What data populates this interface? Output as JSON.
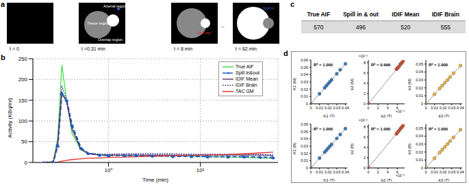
{
  "panel_labels": [
    "a",
    "b",
    "c",
    "d"
  ],
  "panel_a": {
    "frames": [
      {
        "time": "t = 0",
        "labels": []
      },
      {
        "time": "t =0.31 min",
        "labels": [
          "Arterial region",
          "Tissue region",
          "Overlap region"
        ]
      },
      {
        "time": "t = 8 min",
        "labels": [
          "Spill out"
        ]
      },
      {
        "time": "t = 62 min",
        "labels": [
          "Spill in"
        ]
      }
    ],
    "ellipsis": ".."
  },
  "table": {
    "header": [
      "True AIF",
      "Spill in & out",
      "IDIF Mean",
      "IDIF Brain"
    ],
    "rows": [
      [
        570,
        496,
        520,
        555
      ]
    ]
  },
  "chart_data": [
    {
      "type": "line",
      "log": "x",
      "x_label": "Time (min)",
      "y_label": "Activity (KBq/ml)",
      "xlim": [
        0.15,
        70
      ],
      "xticks": [
        {
          "value": 1,
          "label": "10⁰"
        },
        {
          "value": 10,
          "label": "10¹"
        }
      ],
      "ylim": [
        0,
        250
      ],
      "yticks": [
        0,
        50,
        100,
        150,
        200,
        250
      ],
      "grid": true,
      "legend": "top right",
      "x": [
        0.2,
        0.25,
        0.28,
        0.31,
        0.35,
        0.4,
        0.5,
        0.6,
        0.8,
        1,
        1.5,
        2,
        3,
        5,
        8,
        12,
        20,
        30,
        45,
        62
      ],
      "series": [
        {
          "name": "True AIF",
          "color": "#4ddb4d",
          "line_style": "solid",
          "values": [
            0,
            2,
            60,
            235,
            150,
            70,
            30,
            22,
            19,
            18,
            17,
            17,
            17,
            16,
            15,
            14,
            13,
            12,
            11,
            10
          ]
        },
        {
          "name": "Spill in&out",
          "color": "#1f5fbf",
          "line_style": "dashed",
          "marker": "circle",
          "values": [
            0,
            1,
            40,
            165,
            150,
            90,
            35,
            22,
            18,
            17,
            17,
            17,
            16,
            15,
            15,
            14,
            14,
            14,
            13,
            12
          ]
        },
        {
          "name": "IDIF Mean",
          "color": "#6a3d6a",
          "line_style": "solid",
          "values": [
            0,
            1,
            45,
            170,
            145,
            80,
            32,
            21,
            18,
            18,
            18,
            18,
            18,
            18,
            18,
            18,
            18,
            18,
            18,
            17
          ]
        },
        {
          "name": "IDIF Brain",
          "color": "#1a1a8c",
          "line_style": "dotted",
          "values": [
            0,
            1,
            50,
            185,
            150,
            85,
            33,
            22,
            20,
            20,
            21,
            21,
            21,
            21,
            20,
            20,
            20,
            20,
            19,
            18
          ]
        },
        {
          "name": "TAC GM",
          "color": "#e03030",
          "line_style": "solid",
          "values": [
            0,
            0,
            1,
            3,
            5,
            7,
            9,
            10,
            11,
            12,
            13,
            14,
            15,
            16,
            17,
            18,
            19,
            21,
            23,
            25
          ]
        }
      ]
    },
    {
      "type": "scatter",
      "x_label": "K1 (T)",
      "y_label": "K1 (M)",
      "annotation": "R² = 1.000",
      "color": "#3a7bbf",
      "xlim": [
        0,
        0.042
      ],
      "xticks": [
        0,
        0.01,
        0.02,
        0.03,
        0.04
      ],
      "ylim": [
        0,
        0.06
      ],
      "yticks": [
        0,
        0.01,
        0.02,
        0.03,
        0.04,
        0.05,
        0.06
      ],
      "x": [
        0,
        0.01,
        0.016,
        0.018,
        0.02,
        0.022,
        0.024,
        0.03,
        0.034,
        0.04
      ],
      "values": [
        0,
        0.0137,
        0.0219,
        0.0247,
        0.0274,
        0.0301,
        0.0329,
        0.0411,
        0.0466,
        0.0548
      ],
      "fit_line": {
        "x": [
          0,
          0.04
        ],
        "y": [
          0,
          0.0548
        ]
      }
    },
    {
      "type": "scatter",
      "x_label": "k2 (T)",
      "y_label": "k2 (M)",
      "annotation": "R² = 0.999",
      "color": "#e0553a",
      "x_exponent": "×10⁻³",
      "y_exponent": "×10⁻³",
      "xlim": [
        0,
        0.0075
      ],
      "xticks": [
        {
          "value": 0,
          "label": "0"
        },
        {
          "value": 0.002,
          "label": "2"
        },
        {
          "value": 0.004,
          "label": "4"
        },
        {
          "value": 0.006,
          "label": "6"
        }
      ],
      "ylim": [
        0,
        0.0085
      ],
      "yticks": [
        {
          "value": 0,
          "label": "0"
        },
        {
          "value": 0.002,
          "label": "2"
        },
        {
          "value": 0.004,
          "label": "4"
        },
        {
          "value": 0.006,
          "label": "6"
        },
        {
          "value": 0.008,
          "label": "8"
        }
      ],
      "x": [
        0,
        0.0058,
        0.006,
        0.0062,
        0.0064,
        0.0066,
        0.0068,
        0.007,
        0.0072
      ],
      "values": [
        0,
        0.0067,
        0.0069,
        0.0071,
        0.0073,
        0.0077,
        0.0078,
        0.0081,
        0.0083
      ],
      "fit_line": {
        "x": [
          0,
          0.0072
        ],
        "y": [
          0,
          0.0083
        ]
      }
    },
    {
      "type": "scatter",
      "x_label": "k3 (T)",
      "y_label": "k3 (M)",
      "annotation": "R² = 1.000",
      "color": "#f2b632",
      "xlim": [
        0,
        0.042
      ],
      "xticks": [
        0,
        0.01,
        0.02,
        0.03,
        0.04
      ],
      "ylim": [
        0,
        0.055
      ],
      "yticks": [
        0,
        0.01,
        0.02,
        0.03,
        0.04,
        0.05
      ],
      "x": [
        0,
        0.01,
        0.016,
        0.019,
        0.022,
        0.025,
        0.028,
        0.032,
        0.04
      ],
      "values": [
        0,
        0.012,
        0.0192,
        0.0228,
        0.0264,
        0.03,
        0.0336,
        0.0384,
        0.048
      ],
      "fit_line": {
        "x": [
          0,
          0.04
        ],
        "y": [
          0,
          0.048
        ]
      }
    },
    {
      "type": "scatter",
      "x_label": "K1 (T)",
      "y_label": "K1 (B)",
      "annotation": "R² = 1.000",
      "color": "#3a7bbf",
      "xlim": [
        0,
        0.042
      ],
      "xticks": [
        0,
        0.01,
        0.02,
        0.03,
        0.04
      ],
      "ylim": [
        0,
        0.06
      ],
      "yticks": [
        0,
        0.01,
        0.02,
        0.03,
        0.04,
        0.05,
        0.06
      ],
      "x": [
        0,
        0.01,
        0.016,
        0.018,
        0.02,
        0.022,
        0.024,
        0.03,
        0.034,
        0.04
      ],
      "values": [
        0,
        0.0135,
        0.0216,
        0.0243,
        0.027,
        0.0297,
        0.0324,
        0.0405,
        0.0459,
        0.054
      ],
      "fit_line": {
        "x": [
          0,
          0.04
        ],
        "y": [
          0,
          0.054
        ]
      }
    },
    {
      "type": "scatter",
      "x_label": "k2 (T)",
      "y_label": "k2 (B)",
      "annotation": "R² = 1.000",
      "color": "#e0553a",
      "x_exponent": "×10⁻³",
      "y_exponent": "×10⁻³",
      "xlim": [
        0,
        0.0075
      ],
      "xticks": [
        {
          "value": 0,
          "label": "0"
        },
        {
          "value": 0.002,
          "label": "2"
        },
        {
          "value": 0.004,
          "label": "4"
        },
        {
          "value": 0.006,
          "label": "6"
        }
      ],
      "ylim": [
        0,
        0.0085
      ],
      "yticks": [
        {
          "value": 0,
          "label": "0"
        },
        {
          "value": 0.002,
          "label": "2"
        },
        {
          "value": 0.004,
          "label": "4"
        },
        {
          "value": 0.006,
          "label": "6"
        },
        {
          "value": 0.008,
          "label": "8"
        }
      ],
      "x": [
        0,
        0.0058,
        0.006,
        0.0062,
        0.0064,
        0.0066,
        0.0068,
        0.007,
        0.0072
      ],
      "values": [
        0,
        0.0066,
        0.0069,
        0.0071,
        0.0073,
        0.0076,
        0.0078,
        0.008,
        0.0083
      ],
      "fit_line": {
        "x": [
          0,
          0.0072
        ],
        "y": [
          0,
          0.0083
        ]
      }
    },
    {
      "type": "scatter",
      "x_label": "k3 (T)",
      "y_label": "k3 (B)",
      "annotation": "R² = 1.000",
      "color": "#f2b632",
      "xlim": [
        0,
        0.042
      ],
      "xticks": [
        0,
        0.01,
        0.02,
        0.03,
        0.04
      ],
      "ylim": [
        0,
        0.055
      ],
      "yticks": [
        0,
        0.01,
        0.02,
        0.03,
        0.04,
        0.05
      ],
      "x": [
        0,
        0.01,
        0.016,
        0.019,
        0.022,
        0.025,
        0.028,
        0.032,
        0.04
      ],
      "values": [
        0,
        0.0121,
        0.0193,
        0.0229,
        0.0265,
        0.0301,
        0.0337,
        0.0385,
        0.0481
      ],
      "fit_line": {
        "x": [
          0,
          0.04
        ],
        "y": [
          0,
          0.0481
        ]
      }
    }
  ]
}
